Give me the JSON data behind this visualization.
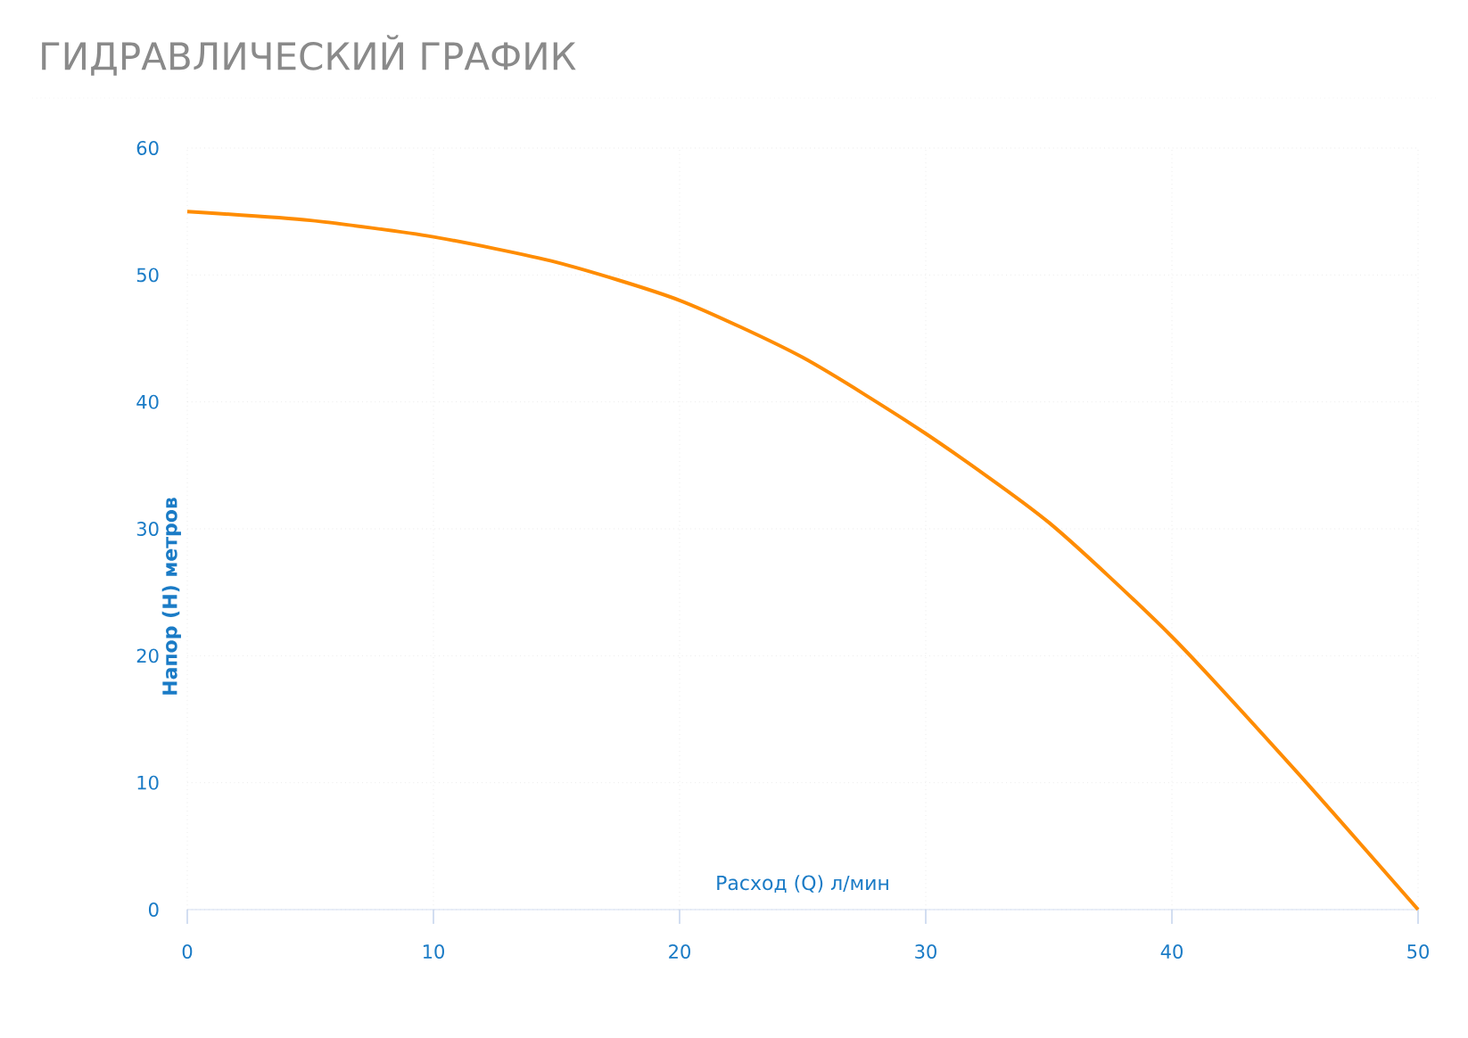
{
  "chart_data": {
    "type": "line",
    "title": "ГИДРАВЛИЧЕСКИЙ ГРАФИК",
    "xlabel": "Расход (Q) л/мин",
    "ylabel": "Напор (Н) метров",
    "x": [
      0,
      5,
      10,
      15,
      20,
      25,
      30,
      35,
      40,
      45,
      50
    ],
    "series": [
      {
        "color": "#ff8c00",
        "values": [
          55,
          54.3,
          53,
          51,
          48,
          43.5,
          37.5,
          30.5,
          21.5,
          11,
          0
        ]
      }
    ],
    "xlim": [
      0,
      50
    ],
    "ylim": [
      0,
      60
    ],
    "xticks": [
      0,
      10,
      20,
      30,
      40,
      50
    ],
    "yticks": [
      0,
      10,
      20,
      30,
      40,
      50,
      60
    ],
    "grid": true,
    "marker": "none",
    "line_style": "solid"
  }
}
